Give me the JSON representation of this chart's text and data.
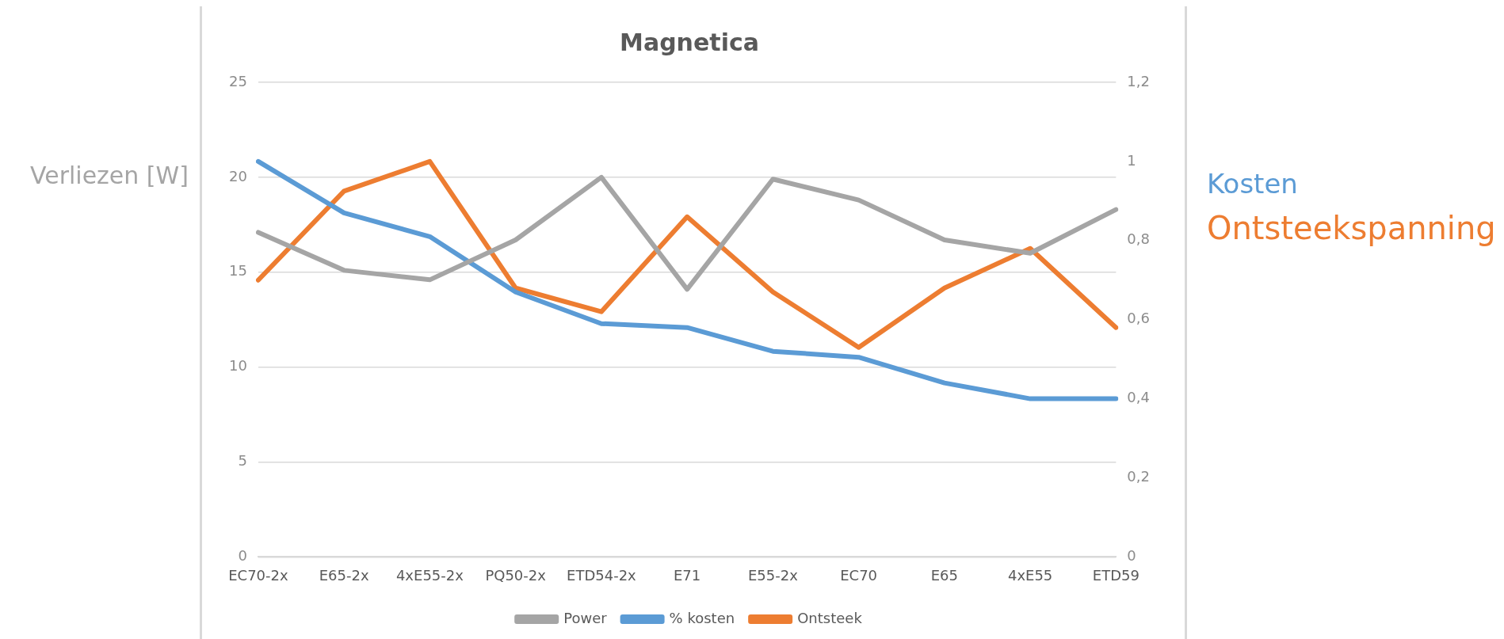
{
  "chart_data": {
    "type": "line",
    "title": "Magnetica",
    "ylabel": "Verliezen [W]",
    "y2label": "Kosten",
    "annotations": [
      "Ontsteekspanning"
    ],
    "categories": [
      "EC70-2x",
      "E65-2x",
      "4xE55-2x",
      "PQ50-2x",
      "ETD54-2x",
      "E71",
      "E55-2x",
      "EC70",
      "E65",
      "4xE55",
      "ETD59"
    ],
    "series": [
      {
        "name": "Power",
        "color": "#a5a5a5",
        "values": [
          17.1,
          15.1,
          14.6,
          16.7,
          20.0,
          14.1,
          19.9,
          18.8,
          16.7,
          16.0,
          18.3
        ]
      },
      {
        "name": "% kosten",
        "color": "#5b9bd5",
        "axis": "y2",
        "values": [
          1.0,
          0.87,
          0.81,
          0.67,
          0.59,
          0.58,
          0.52,
          0.505,
          0.44,
          0.4,
          0.4
        ]
      },
      {
        "name": "Ontsteek",
        "color": "#ed7d31",
        "axis": "y2",
        "values": [
          0.7,
          0.925,
          1.0,
          0.68,
          0.62,
          0.86,
          0.67,
          0.53,
          0.68,
          0.78,
          0.58
        ]
      }
    ],
    "ylim": [
      0,
      25
    ],
    "yticks": [
      0,
      5,
      10,
      15,
      20,
      25
    ],
    "y2lim": [
      0,
      1.2
    ],
    "y2ticks": [
      0,
      {
        "value": 0.2,
        "label": "0,2"
      },
      {
        "value": 0.4,
        "label": "0,4"
      },
      {
        "value": 0.6,
        "label": "0,6"
      },
      {
        "value": 0.8,
        "label": "0,8"
      },
      1,
      {
        "value": 1.2,
        "label": "1,2"
      }
    ],
    "grid": "y",
    "legend": "bottom",
    "marker": "none",
    "line_style": "solid"
  }
}
